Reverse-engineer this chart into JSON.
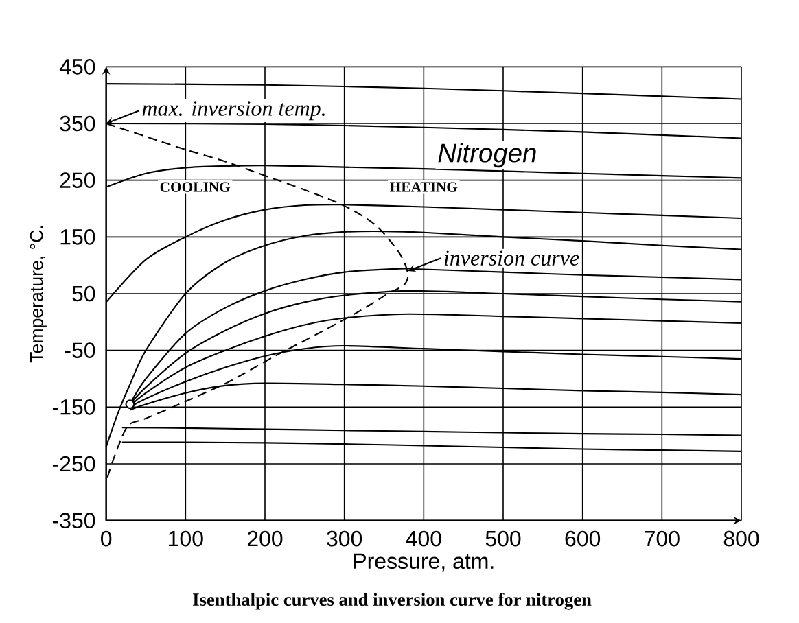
{
  "chart_data": {
    "type": "line",
    "xlabel": "Pressure, atm.",
    "ylabel": "Temperature, °C.",
    "xlim": [
      0,
      800
    ],
    "ylim": [
      -350,
      450
    ],
    "xticks": [
      0,
      100,
      200,
      300,
      400,
      500,
      600,
      700,
      800
    ],
    "yticks": [
      -350,
      -250,
      -150,
      -50,
      50,
      150,
      250,
      350,
      450
    ],
    "grid": true,
    "series": [
      {
        "color": "#000000",
        "x": [
          0,
          200,
          400,
          600,
          800
        ],
        "values": [
          420,
          418,
          412,
          403,
          393
        ]
      },
      {
        "color": "#000000",
        "x": [
          0,
          200,
          400,
          600,
          800
        ],
        "values": [
          350,
          349,
          343,
          335,
          324
        ]
      },
      {
        "color": "#000000",
        "x": [
          0,
          50,
          100,
          150,
          200,
          300,
          400,
          500,
          600,
          700,
          800
        ],
        "values": [
          238,
          262,
          272,
          275,
          276,
          273,
          270,
          266,
          262,
          258,
          254
        ]
      },
      {
        "color": "#000000",
        "x": [
          0,
          50,
          100,
          150,
          200,
          250,
          300,
          400,
          500,
          600,
          700,
          800
        ],
        "values": [
          35,
          110,
          150,
          180,
          198,
          206,
          207,
          203,
          198,
          193,
          188,
          183
        ]
      },
      {
        "color": "#000000",
        "x": [
          0,
          15,
          30,
          50,
          100,
          150,
          200,
          250,
          300,
          350,
          400,
          500,
          600,
          700,
          800
        ],
        "values": [
          -220,
          -160,
          -110,
          -50,
          50,
          105,
          135,
          152,
          159,
          160,
          158,
          150,
          143,
          135,
          128
        ]
      },
      {
        "color": "#000000",
        "x": [
          30,
          50,
          100,
          150,
          200,
          250,
          300,
          370,
          400,
          500,
          600,
          700,
          800
        ],
        "values": [
          -145,
          -100,
          -20,
          25,
          55,
          75,
          88,
          94,
          93,
          88,
          83,
          79,
          75
        ]
      },
      {
        "color": "#000000",
        "x": [
          30,
          50,
          100,
          150,
          200,
          250,
          300,
          380,
          500,
          600,
          700,
          800
        ],
        "values": [
          -145,
          -115,
          -55,
          -15,
          15,
          35,
          47,
          55,
          50,
          45,
          40,
          36
        ]
      },
      {
        "color": "#000000",
        "x": [
          30,
          50,
          100,
          150,
          200,
          250,
          300,
          380,
          500,
          600,
          700,
          800
        ],
        "values": [
          -148,
          -125,
          -80,
          -50,
          -25,
          -5,
          7,
          14,
          10,
          6,
          2,
          -2
        ]
      },
      {
        "color": "#000000",
        "x": [
          30,
          50,
          100,
          150,
          200,
          250,
          300,
          400,
          500,
          600,
          700,
          800
        ],
        "values": [
          -150,
          -135,
          -105,
          -80,
          -60,
          -47,
          -42,
          -47,
          -52,
          -57,
          -61,
          -65
        ]
      },
      {
        "color": "#000000",
        "x": [
          30,
          50,
          100,
          150,
          200,
          300,
          400,
          500,
          600,
          700,
          800
        ],
        "values": [
          -155,
          -145,
          -125,
          -112,
          -108,
          -110,
          -113,
          -117,
          -121,
          -124,
          -128
        ]
      },
      {
        "color": "#000000",
        "x": [
          20,
          100,
          200,
          300,
          400,
          500,
          600,
          700,
          800
        ],
        "values": [
          -186,
          -187,
          -189,
          -191,
          -193,
          -195,
          -197,
          -198,
          -200
        ]
      },
      {
        "color": "#000000",
        "x": [
          20,
          100,
          200,
          300,
          400,
          500,
          600,
          700,
          800
        ],
        "values": [
          -212,
          -212,
          -213,
          -215,
          -218,
          -221,
          -224,
          -226,
          -228
        ]
      },
      {
        "color": "#000000",
        "line_style": "dashed",
        "x": [
          0,
          50,
          100,
          150,
          200,
          250,
          300,
          340,
          370,
          380,
          375,
          356,
          320,
          270,
          210,
          155,
          100,
          50,
          28,
          15,
          5,
          0
        ],
        "values": [
          350,
          327,
          304,
          283,
          258,
          233,
          205,
          170,
          120,
          85,
          65,
          51,
          20,
          -18,
          -62,
          -105,
          -140,
          -170,
          -182,
          -220,
          -259,
          -282
        ]
      },
      {
        "type": "scatter",
        "marker": "circle",
        "color": "#000000",
        "x": [
          30
        ],
        "values": [
          -145
        ]
      }
    ],
    "annotations": [
      {
        "text": "max. inversion temp.",
        "x": 0,
        "y": 350
      },
      {
        "text": "inversion curve",
        "x": 380,
        "y": 90
      },
      "Nitrogen",
      "COOLING",
      "HEATING",
      "Isenthalpic curves and inversion curve for nitrogen"
    ]
  }
}
